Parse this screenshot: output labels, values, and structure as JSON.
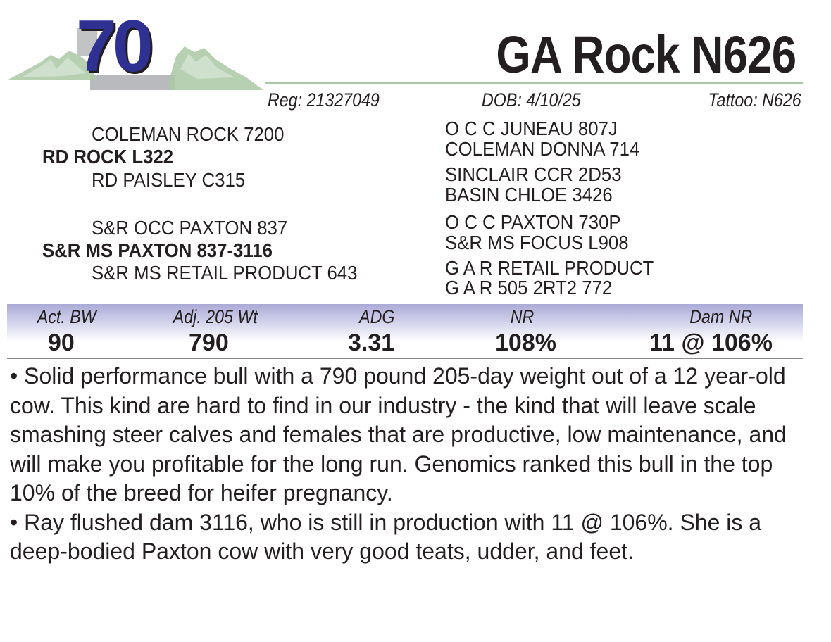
{
  "lot": {
    "number": "70",
    "logo_icon": "mountain-range-icon"
  },
  "animal": {
    "name": "GA Rock N626",
    "reg": "Reg: 21327049",
    "dob": "DOB:  4/10/25",
    "tattoo": "Tattoo:  N626"
  },
  "pedigree": {
    "sire": "RD ROCK L322",
    "sire_sire": "COLEMAN ROCK 7200",
    "sire_dam": "RD PAISLEY C315",
    "sire_sire_sire": "O C C JUNEAU 807J",
    "sire_sire_dam": "COLEMAN DONNA 714",
    "sire_dam_sire": "SINCLAIR CCR 2D53",
    "sire_dam_dam": "BASIN CHLOE 3426",
    "dam": "S&R MS PAXTON 837-3116",
    "dam_sire": "S&R OCC PAXTON 837",
    "dam_dam": "S&R MS RETAIL PRODUCT 643",
    "dam_sire_sire": "O C C PAXTON 730P",
    "dam_sire_dam": "S&R MS FOCUS L908",
    "dam_dam_sire": "G A R RETAIL PRODUCT",
    "dam_dam_dam": "G A R 505 2RT2 772"
  },
  "performance": [
    {
      "label": "Act. BW",
      "value": "90"
    },
    {
      "label": "Adj. 205 Wt",
      "value": "790"
    },
    {
      "label": "ADG",
      "value": "3.31"
    },
    {
      "label": "NR",
      "value": "108%"
    },
    {
      "label": "Dam NR",
      "value": "11 @ 106%"
    }
  ],
  "description": [
    "• Solid performance bull with a 790 pound 205-day weight out of a 12 year-old cow.  This kind are hard to find in our industry - the kind that will leave scale smashing steer calves and females that are productive, low maintenance, and will make you profitable for the long run.  Genomics ranked this bull in the top 10% of the breed for heifer pregnancy.",
    "• Ray flushed dam 3116, who is still in production with 11 @ 106%. She is a deep-bodied Paxton cow with very good teats, udder, and feet."
  ],
  "colors": {
    "lot_number": "#2e3192",
    "mountain": "#a9c8a3",
    "band_top": "#aaaad6"
  }
}
